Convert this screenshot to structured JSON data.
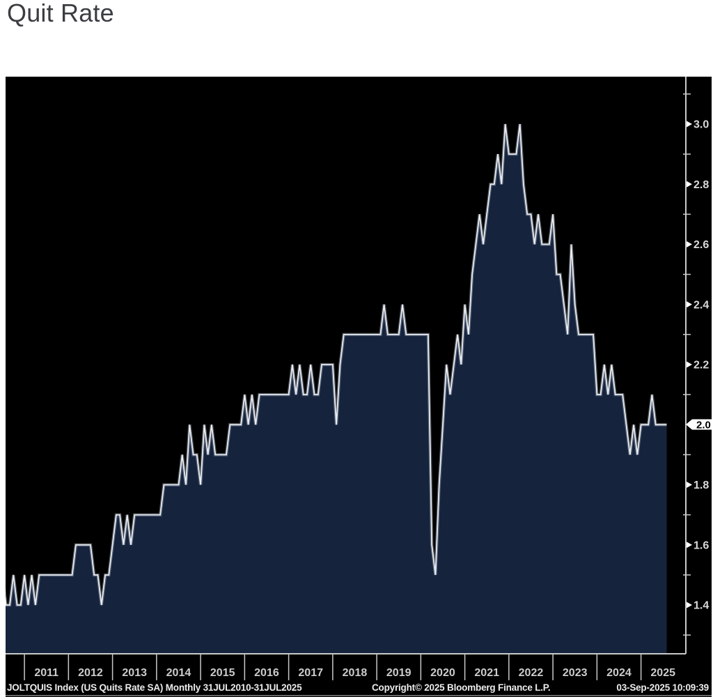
{
  "page": {
    "title": "Quit Rate"
  },
  "chart": {
    "colors": {
      "panel_bg": "#000000",
      "area_fill": "#15233d",
      "line": "#e9edf2",
      "line_glow": "rgba(205,215,230,0.35)",
      "axis": "#c9c9c9",
      "y_label": "#d9d9d9",
      "x_label": "#cccccc",
      "footer_text": "#ececec",
      "badge_bg": "#ffffff",
      "badge_text": "#000000"
    },
    "y_axis": {
      "major_ticks": [
        1.4,
        1.6,
        1.8,
        2.0,
        2.2,
        2.4,
        2.6,
        2.8,
        3.0
      ],
      "minor_ticks": [
        1.3,
        1.5,
        1.7,
        1.9,
        2.1,
        2.3,
        2.5,
        2.7,
        2.9,
        3.1
      ],
      "current_value": 2.0
    },
    "x_axis": {
      "years": [
        "2011",
        "2012",
        "2013",
        "2014",
        "2015",
        "2016",
        "2017",
        "2018",
        "2019",
        "2020",
        "2021",
        "2022",
        "2023",
        "2024",
        "2025"
      ]
    },
    "last_value_badge": {
      "value": "2.0"
    },
    "footer": {
      "left": "JOLTQUIS Index (US Quits Rate SA)  Monthly 31JUL2010-31JUL2025",
      "center": "Copyright© 2025 Bloomberg Finance L.P.",
      "right": "03-Sep-2025 10:09:39"
    }
  },
  "chart_data": {
    "type": "area",
    "title": "Quit Rate",
    "series_name": "JOLTQUIS Index (US Quits Rate SA)",
    "frequency": "Monthly",
    "period": "31JUL2010-31JUL2025",
    "start_month": "2010-07",
    "end_month": "2025-07",
    "unit": "percent",
    "grid": false,
    "legend_position": "none",
    "ylim": [
      1.25,
      3.15
    ],
    "y_tick_labels": [
      "1.4",
      "1.6",
      "1.8",
      "2.0",
      "2.2",
      "2.4",
      "2.6",
      "2.8",
      "3.0"
    ],
    "x_tick_labels": [
      "2011",
      "2012",
      "2013",
      "2014",
      "2015",
      "2016",
      "2017",
      "2018",
      "2019",
      "2020",
      "2021",
      "2022",
      "2023",
      "2024",
      "2025"
    ],
    "last_value": 2.0,
    "values": [
      1.5,
      1.4,
      1.4,
      1.5,
      1.4,
      1.4,
      1.5,
      1.4,
      1.5,
      1.4,
      1.5,
      1.5,
      1.5,
      1.5,
      1.5,
      1.5,
      1.5,
      1.5,
      1.5,
      1.5,
      1.6,
      1.6,
      1.6,
      1.6,
      1.6,
      1.5,
      1.5,
      1.4,
      1.5,
      1.5,
      1.6,
      1.7,
      1.7,
      1.6,
      1.7,
      1.6,
      1.7,
      1.7,
      1.7,
      1.7,
      1.7,
      1.7,
      1.7,
      1.7,
      1.8,
      1.8,
      1.8,
      1.8,
      1.8,
      1.9,
      1.8,
      2.0,
      1.9,
      1.9,
      1.8,
      2.0,
      1.9,
      2.0,
      1.9,
      1.9,
      1.9,
      1.9,
      2.0,
      2.0,
      2.0,
      2.0,
      2.1,
      2.0,
      2.1,
      2.0,
      2.1,
      2.1,
      2.1,
      2.1,
      2.1,
      2.1,
      2.1,
      2.1,
      2.1,
      2.2,
      2.1,
      2.2,
      2.1,
      2.1,
      2.2,
      2.1,
      2.1,
      2.2,
      2.2,
      2.2,
      2.2,
      2.0,
      2.2,
      2.3,
      2.3,
      2.3,
      2.3,
      2.3,
      2.3,
      2.3,
      2.3,
      2.3,
      2.3,
      2.3,
      2.4,
      2.3,
      2.3,
      2.3,
      2.3,
      2.4,
      2.3,
      2.3,
      2.3,
      2.3,
      2.3,
      2.3,
      2.3,
      1.6,
      1.5,
      1.8,
      2.0,
      2.2,
      2.1,
      2.2,
      2.3,
      2.2,
      2.4,
      2.3,
      2.5,
      2.6,
      2.7,
      2.6,
      2.7,
      2.8,
      2.8,
      2.9,
      2.8,
      3.0,
      2.9,
      2.9,
      2.9,
      3.0,
      2.8,
      2.7,
      2.7,
      2.6,
      2.7,
      2.6,
      2.6,
      2.6,
      2.7,
      2.5,
      2.5,
      2.4,
      2.3,
      2.6,
      2.4,
      2.3,
      2.3,
      2.3,
      2.3,
      2.3,
      2.1,
      2.1,
      2.2,
      2.1,
      2.2,
      2.1,
      2.1,
      2.1,
      2.0,
      1.9,
      2.0,
      1.9,
      2.0,
      2.0,
      2.0,
      2.1,
      2.0,
      2.0,
      2.0
    ]
  }
}
